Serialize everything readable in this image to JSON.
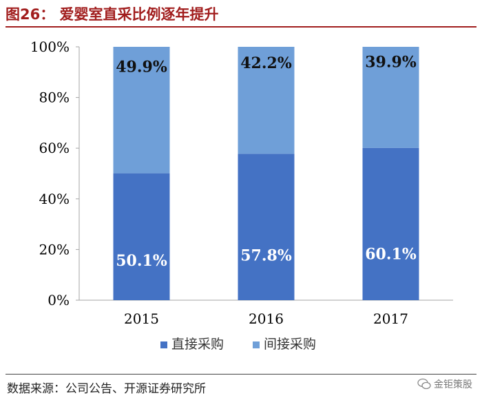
{
  "figure": {
    "title": "图26：  爱婴室直采比例逐年提升",
    "source": "数据来源：公司公告、开源证券研究所",
    "watermark": "金钜策股"
  },
  "chart_data": {
    "type": "bar",
    "stacked": true,
    "categories": [
      "2015",
      "2016",
      "2017"
    ],
    "series": [
      {
        "name": "直接采购",
        "values": [
          50.1,
          57.8,
          60.1
        ],
        "labels": [
          "50.1%",
          "57.8%",
          "60.1%"
        ],
        "color": "#4472c4"
      },
      {
        "name": "间接采购",
        "values": [
          49.9,
          42.2,
          39.9
        ],
        "labels": [
          "49.9%",
          "42.2%",
          "39.9%"
        ],
        "color": "#6f9fd8"
      }
    ],
    "ylim": [
      0,
      100
    ],
    "yticks": [
      "0%",
      "20%",
      "40%",
      "60%",
      "80%",
      "100%"
    ],
    "legend_position": "bottom",
    "grid": false
  }
}
